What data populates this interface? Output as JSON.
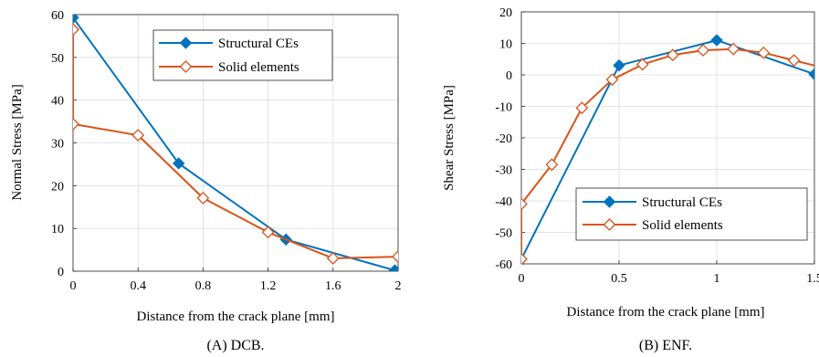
{
  "chart_data": [
    {
      "type": "line",
      "caption": "(A) DCB.",
      "xlabel": "Distance from the crack plane [mm]",
      "ylabel": "Normal Stress [MPa]",
      "xlim": [
        0,
        2
      ],
      "ylim": [
        0,
        60
      ],
      "xticks": [
        0,
        0.4,
        0.8,
        1.2,
        1.6,
        2
      ],
      "xtick_labels": [
        "0",
        "0.4",
        "0.8",
        "1.2",
        "1.6",
        "2"
      ],
      "yticks": [
        0,
        10,
        20,
        30,
        40,
        50,
        60
      ],
      "ytick_labels": [
        "0",
        "10",
        "20",
        "30",
        "40",
        "50",
        "60"
      ],
      "grid": true,
      "legend": "top-right",
      "series": [
        {
          "name": "Structural CEs",
          "color": "#0072BD",
          "marker": "filled-diamond",
          "x": [
            0,
            0.65,
            1.31,
            1.98
          ],
          "y": [
            59.3,
            25.2,
            7.4,
            0.2
          ]
        },
        {
          "name": "Solid elements",
          "color": "#D95319",
          "marker": "open-diamond",
          "x": [
            0,
            0,
            0,
            0.4,
            0.8,
            1.2,
            1.6,
            2.0
          ],
          "y": [
            56.5,
            56.5,
            34.4,
            31.8,
            17.1,
            9.1,
            3.0,
            3.4
          ]
        }
      ]
    },
    {
      "type": "line",
      "caption": "(B) ENF.",
      "xlabel": "Distance from the crack plane [mm]",
      "ylabel": "Shear Stress [MPa]",
      "xlim": [
        0,
        1.5
      ],
      "ylim": [
        -60,
        20
      ],
      "xticks": [
        0,
        0.5,
        1,
        1.5
      ],
      "xtick_labels": [
        "0",
        "0.5",
        "1",
        "1.5"
      ],
      "yticks": [
        -60,
        -50,
        -40,
        -30,
        -20,
        -10,
        0,
        10,
        20
      ],
      "ytick_labels": [
        "-60",
        "-50",
        "-40",
        "-30",
        "-20",
        "-10",
        "0",
        "10",
        "20"
      ],
      "grid": true,
      "legend": "bottom-right",
      "series": [
        {
          "name": "Structural CEs",
          "color": "#0072BD",
          "marker": "filled-diamond",
          "x": [
            0,
            0.5,
            1.0,
            1.5
          ],
          "y": [
            -58.5,
            3.0,
            11.0,
            0.2
          ]
        },
        {
          "name": "Solid elements",
          "color": "#D95319",
          "marker": "open-diamond",
          "x": [
            0,
            0,
            0.156,
            0.31,
            0.465,
            0.62,
            0.775,
            0.93,
            1.085,
            1.24,
            1.395,
            1.55
          ],
          "y": [
            -58.5,
            -41.0,
            -28.5,
            -10.5,
            -1.5,
            3.3,
            6.3,
            7.8,
            8.2,
            7.0,
            4.6,
            2.2
          ]
        }
      ]
    }
  ]
}
